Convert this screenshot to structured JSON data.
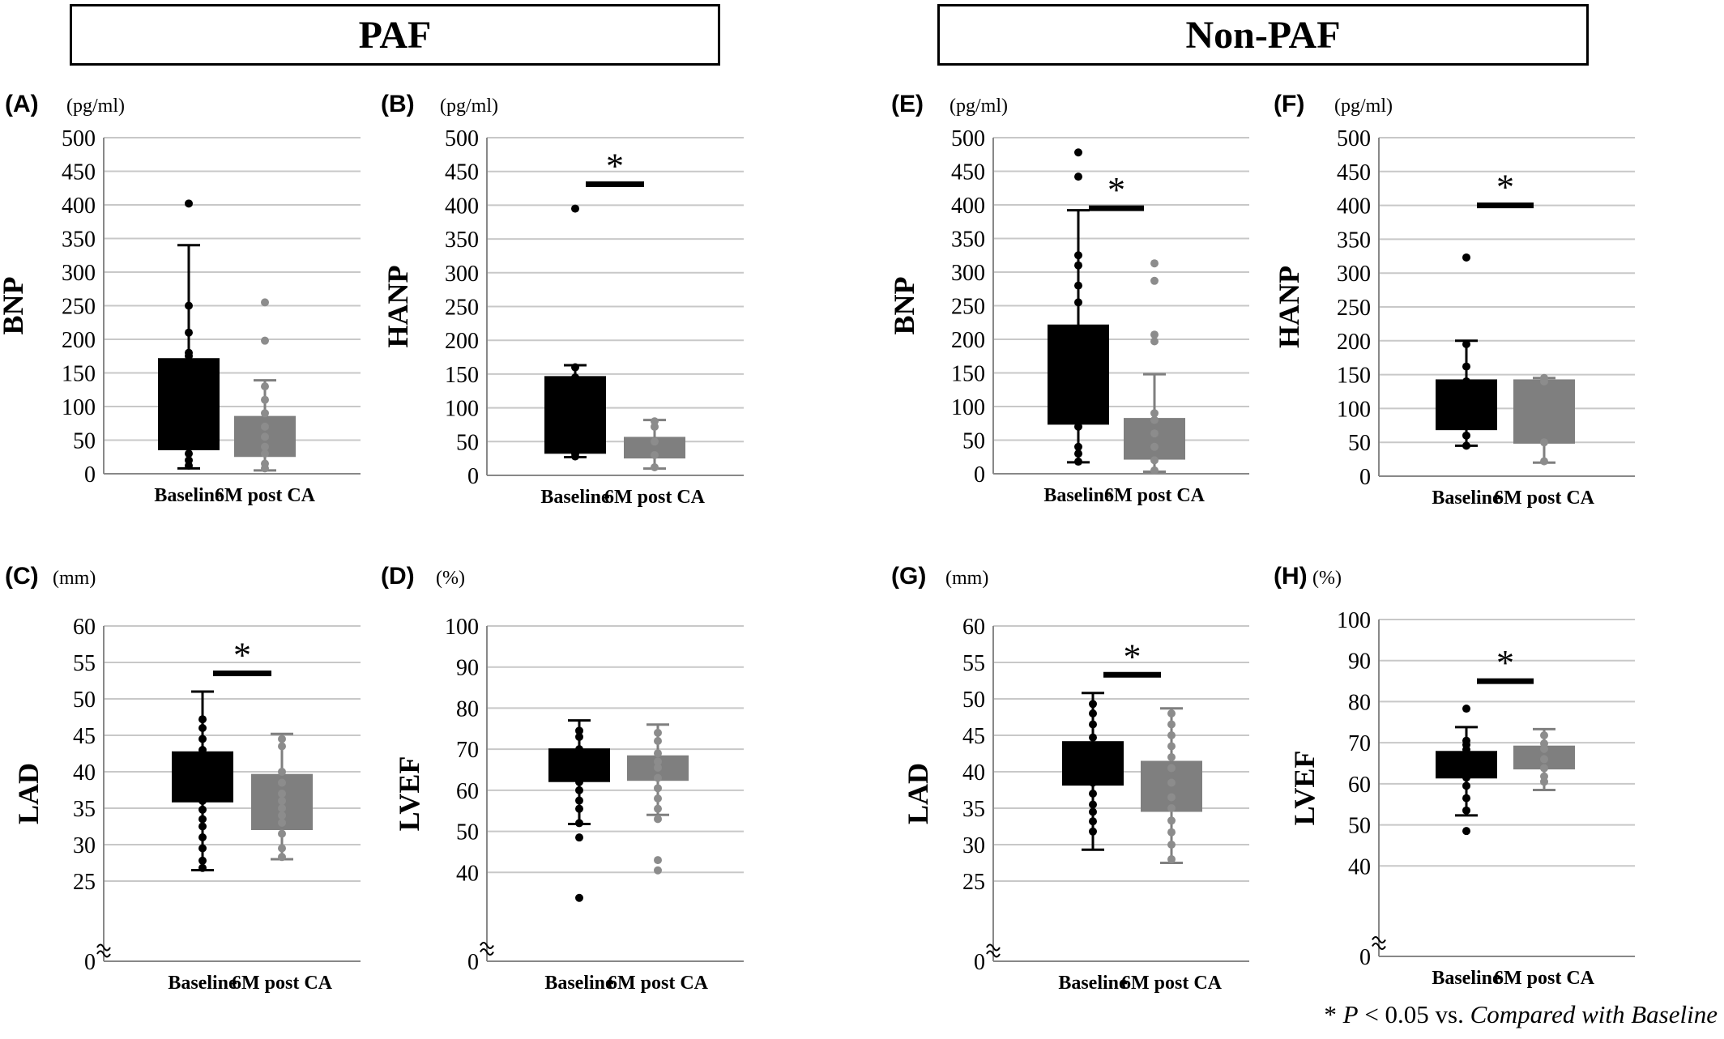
{
  "groups": {
    "left": "PAF",
    "right": "Non-PAF"
  },
  "footnote": {
    "star": "*",
    "p": "P",
    "text": " < 0.05 vs. ",
    "italic": "Compared with Baseline"
  },
  "colors": {
    "baseline": "#000000",
    "post": "#7f7f7f",
    "post_dots": "#8c8c8c",
    "grid": "#c8c8c8",
    "axis": "#888888"
  },
  "chart_data": [
    {
      "panel": "(A)",
      "type": "box",
      "unit": "(pg/ml)",
      "ylabel": "BNP",
      "categories": [
        "Baseline",
        "6M post CA"
      ],
      "ylim": [
        0,
        500
      ],
      "yticks": [
        0,
        50,
        100,
        150,
        200,
        250,
        300,
        350,
        400,
        450,
        500
      ],
      "axis_break": false,
      "significance": false,
      "boxes": [
        {
          "q1": 35,
          "q3": 172,
          "whisker_low": 8,
          "whisker_high": 340
        },
        {
          "q1": 25,
          "q3": 86,
          "whisker_low": 5,
          "whisker_high": 139
        }
      ],
      "points": [
        [
          402,
          250,
          210,
          180,
          175,
          60,
          30,
          20,
          12
        ],
        [
          255,
          198,
          130,
          110,
          90,
          70,
          55,
          40,
          30,
          15,
          8
        ]
      ]
    },
    {
      "panel": "(B)",
      "type": "box",
      "unit": "(pg/ml)",
      "ylabel": "HANP",
      "categories": [
        "Baseline",
        "6M post CA"
      ],
      "ylim": [
        0,
        500
      ],
      "yticks": [
        0,
        50,
        100,
        150,
        200,
        250,
        300,
        350,
        400,
        450,
        500
      ],
      "axis_break": false,
      "significance": true,
      "sig_y": 431,
      "star": "*",
      "boxes": [
        {
          "q1": 32,
          "q3": 147,
          "whisker_low": 27,
          "whisker_high": 163
        },
        {
          "q1": 25,
          "q3": 57,
          "whisker_low": 10,
          "whisker_high": 82
        }
      ],
      "points": [
        [
          395,
          160,
          145,
          32,
          28
        ],
        [
          80,
          72,
          50,
          30,
          12
        ]
      ]
    },
    {
      "panel": "(C)",
      "type": "box",
      "unit": "(mm)",
      "ylabel": "LAD",
      "categories": [
        "Baseline",
        "6M post CA"
      ],
      "ylim": [
        20,
        60
      ],
      "yticks": [
        25,
        30,
        35,
        40,
        45,
        50,
        55,
        60
      ],
      "zero_label": "0",
      "axis_break": true,
      "significance": true,
      "sig_y": 53.5,
      "star": "*",
      "boxes": [
        {
          "q1": 35.8,
          "q3": 42.8,
          "whisker_low": 26.5,
          "whisker_high": 51
        },
        {
          "q1": 32,
          "q3": 39.7,
          "whisker_low": 28,
          "whisker_high": 45.2
        }
      ],
      "points": [
        [
          47.2,
          46,
          44.5,
          43,
          41,
          39.5,
          38.5,
          37,
          36,
          34.8,
          33.5,
          32.5,
          31,
          29.5,
          27.8,
          26.8
        ],
        [
          44.5,
          43.5,
          40,
          38.5,
          37,
          36,
          35,
          34,
          33,
          31.5,
          29.5,
          28.3
        ]
      ]
    },
    {
      "panel": "(D)",
      "type": "box",
      "unit": "(%)",
      "ylabel": "LVEF",
      "categories": [
        "Baseline",
        "6M post CA"
      ],
      "ylim": [
        30,
        100
      ],
      "yticks": [
        40,
        50,
        60,
        70,
        80,
        90,
        100
      ],
      "zero_label": "0",
      "axis_break": true,
      "significance": false,
      "boxes": [
        {
          "q1": 62,
          "q3": 70.2,
          "whisker_low": 51.8,
          "whisker_high": 77
        },
        {
          "q1": 62.3,
          "q3": 68.5,
          "whisker_low": 54,
          "whisker_high": 76
        }
      ],
      "points": [
        [
          74.5,
          73,
          70,
          68,
          65,
          62,
          60,
          57.5,
          55.5,
          52,
          48.5,
          33.8
        ],
        [
          74,
          72,
          69,
          67,
          65.5,
          63,
          60.5,
          58,
          55.5,
          53,
          43,
          40.5
        ]
      ]
    },
    {
      "panel": "(E)",
      "type": "box",
      "unit": "(pg/ml)",
      "ylabel": "BNP",
      "categories": [
        "Baseline",
        "6M post CA"
      ],
      "ylim": [
        0,
        500
      ],
      "yticks": [
        0,
        50,
        100,
        150,
        200,
        250,
        300,
        350,
        400,
        450,
        500
      ],
      "axis_break": false,
      "significance": true,
      "sig_y": 395,
      "star": "*",
      "boxes": [
        {
          "q1": 73,
          "q3": 222,
          "whisker_low": 17,
          "whisker_high": 392
        },
        {
          "q1": 21,
          "q3": 83,
          "whisker_low": 3,
          "whisker_high": 148
        }
      ],
      "points": [
        [
          478,
          442,
          325,
          310,
          280,
          255,
          150,
          100,
          70,
          40,
          30,
          18
        ],
        [
          313,
          287,
          207,
          197,
          90,
          80,
          60,
          40,
          20,
          5
        ]
      ]
    },
    {
      "panel": "(F)",
      "type": "box",
      "unit": "(pg/ml)",
      "ylabel": "HANP",
      "categories": [
        "Baseline",
        "6M post CA"
      ],
      "ylim": [
        0,
        500
      ],
      "yticks": [
        0,
        50,
        100,
        150,
        200,
        250,
        300,
        350,
        400,
        450,
        500
      ],
      "axis_break": false,
      "significance": true,
      "sig_y": 400,
      "star": "*",
      "boxes": [
        {
          "q1": 68,
          "q3": 143,
          "whisker_low": 45,
          "whisker_high": 200
        },
        {
          "q1": 48,
          "q3": 143,
          "whisker_low": 20,
          "whisker_high": 145
        }
      ],
      "points": [
        [
          323,
          195,
          162,
          140,
          100,
          60,
          45
        ],
        [
          145,
          140,
          50,
          22
        ]
      ]
    },
    {
      "panel": "(G)",
      "type": "box",
      "unit": "(mm)",
      "ylabel": "LAD",
      "categories": [
        "Baseline",
        "6M post CA"
      ],
      "ylim": [
        20,
        60
      ],
      "yticks": [
        25,
        30,
        35,
        40,
        45,
        50,
        55,
        60
      ],
      "zero_label": "0",
      "axis_break": true,
      "significance": true,
      "sig_y": 53.3,
      "star": "*",
      "boxes": [
        {
          "q1": 38.1,
          "q3": 44.2,
          "whisker_low": 29.3,
          "whisker_high": 50.8
        },
        {
          "q1": 34.5,
          "q3": 41.5,
          "whisker_low": 27.5,
          "whisker_high": 48.7
        }
      ],
      "points": [
        [
          49.3,
          48,
          46.5,
          44.7,
          43,
          41.5,
          40,
          38.5,
          37,
          35.5,
          34.5,
          33.2,
          31.8
        ],
        [
          48,
          46.5,
          45,
          43.5,
          42,
          40.5,
          38.5,
          36.5,
          35,
          33.3,
          31.7,
          30,
          28
        ]
      ]
    },
    {
      "panel": "(H)",
      "type": "box",
      "unit": "(%)",
      "ylabel": "LVEF",
      "categories": [
        "Baseline",
        "6M post CA"
      ],
      "ylim": [
        30,
        100
      ],
      "yticks": [
        40,
        50,
        60,
        70,
        80,
        90,
        100
      ],
      "zero_label": "0",
      "axis_break": true,
      "significance": true,
      "sig_y": 85,
      "star": "*",
      "boxes": [
        {
          "q1": 61.3,
          "q3": 68,
          "whisker_low": 52.3,
          "whisker_high": 73.8
        },
        {
          "q1": 63.5,
          "q3": 69.3,
          "whisker_low": 58.5,
          "whisker_high": 73.3
        }
      ],
      "points": [
        [
          78.3,
          70.5,
          69.5,
          68.3,
          66,
          63.5,
          61.5,
          59.5,
          56.5,
          53.5,
          48.5
        ],
        [
          71.8,
          69.8,
          68.5,
          66,
          63.8,
          61.8,
          60.5
        ]
      ]
    }
  ]
}
